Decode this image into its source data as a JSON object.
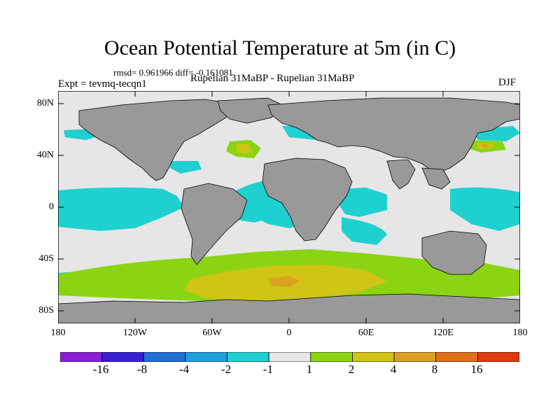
{
  "title": "Ocean Potential Temperature at 5m (in C)",
  "stats": "rmsd= 0.961966 diff= -0.161081",
  "expt_label": "Expt = tevmq-tecqn1",
  "experiment_names": "Rupelian  31MaBP - Rupelian  31MaBP",
  "season": "DJF",
  "lat_labels": [
    "80N",
    "40N",
    "0",
    "40S",
    "80S"
  ],
  "lon_labels": [
    "180",
    "120W",
    "60W",
    "0",
    "60E",
    "120E",
    "180"
  ],
  "colorbar": {
    "labels": [
      "-16",
      "-8",
      "-4",
      "-2",
      "-1",
      "1",
      "2",
      "4",
      "8",
      "16"
    ],
    "colors": [
      "#8a1fd6",
      "#3a20d4",
      "#1f6fd6",
      "#1fa0dc",
      "#1fd0d0",
      "#e6e6e6",
      "#8ad414",
      "#d0c414",
      "#dca020",
      "#e07018",
      "#e03a10"
    ]
  },
  "map_colors": {
    "land": "#999999",
    "neutral": "#e6e6e6",
    "cool_1": "#1fd0d0",
    "warm_1": "#8ad414",
    "warm_2": "#d0c414",
    "warm_3": "#dca020"
  }
}
